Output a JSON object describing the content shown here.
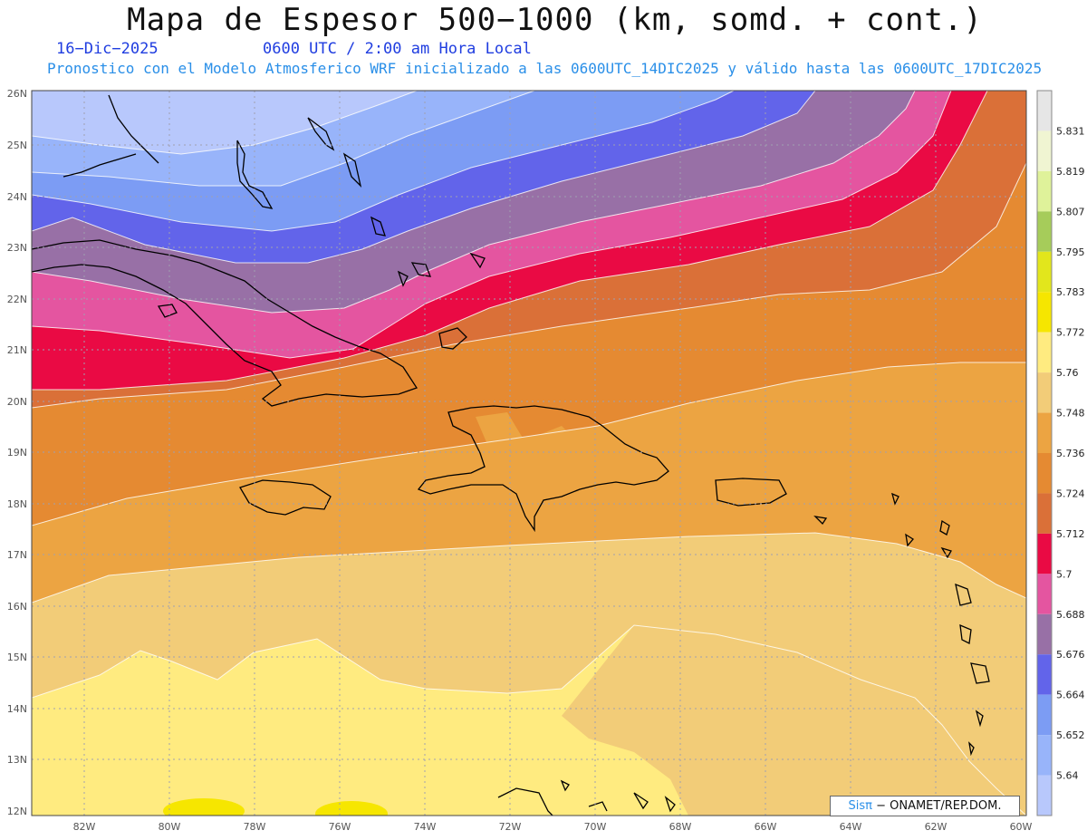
{
  "header": {
    "title": "Mapa de Espesor 500−1000 (km, somd. + cont.)",
    "date": "16−Dic−2025",
    "time": "0600 UTC / 2:00 am Hora Local",
    "subtitle": "Pronostico con el Modelo Atmosferico WRF inicializado a las 0600UTC_14DIC2025 y válido hasta las  0600UTC_17DIC2025"
  },
  "axes": {
    "lat_labels": [
      "26N",
      "25N",
      "24N",
      "23N",
      "22N",
      "21N",
      "20N",
      "19N",
      "18N",
      "17N",
      "16N",
      "15N",
      "14N",
      "13N",
      "12N"
    ],
    "lon_labels": [
      "82W",
      "80W",
      "78W",
      "76W",
      "74W",
      "72W",
      "70W",
      "68W",
      "66W",
      "64W",
      "62W",
      "60W"
    ]
  },
  "legend": {
    "levels": [
      "5.831",
      "5.819",
      "5.807",
      "5.795",
      "5.783",
      "5.772",
      "5.76",
      "5.748",
      "5.736",
      "5.724",
      "5.712",
      "5.7",
      "5.688",
      "5.676",
      "5.664",
      "5.652",
      "5.64"
    ],
    "colors": [
      "#e6e6e6",
      "#f0f5d2",
      "#dff29a",
      "#a6cc5a",
      "#e2e61c",
      "#f6e600",
      "#ffeb80",
      "#f2cc78",
      "#eca442",
      "#e58a32",
      "#da7038",
      "#ea0a44",
      "#e455a0",
      "#9870a6",
      "#6264ea",
      "#7c9cf4",
      "#98b4fa",
      "#b8c8fc"
    ]
  },
  "credit": {
    "brand": "Sisπ",
    "rest": " − ONAMET/REP.DOM."
  },
  "map_colors": {
    "land_outline": "#000000",
    "grid": "#a0a0b0"
  }
}
